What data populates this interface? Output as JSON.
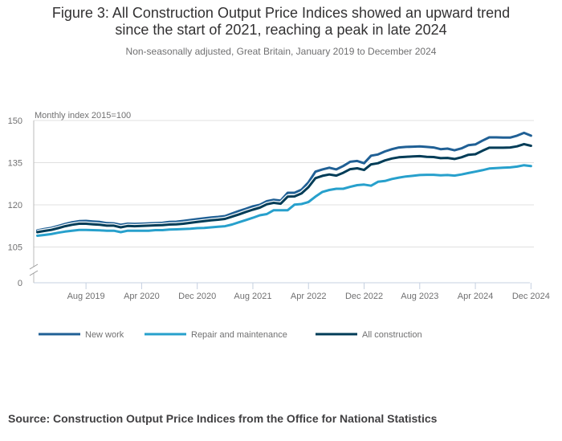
{
  "header": {
    "title_line1": "Figure 3: All Construction Output Price Indices showed an upward trend",
    "title_line2": "since the start of 2021, reaching a peak in late 2024",
    "subtitle": "Non-seasonally adjusted, Great Britain, January 2019 to December 2024"
  },
  "footer": {
    "source": "Source: Construction Output Price Indices from the Office for National Statistics"
  },
  "chart_data": {
    "type": "line",
    "title": "Figure 3: All Construction Output Price Indices showed an upward trend since the start of 2021, reaching a peak in late 2024",
    "subtitle": "Non-seasonally adjusted, Great Britain, January 2019 to December 2024",
    "ylabel": "Monthly index 2015=100",
    "xlabel": "",
    "y_ticks": [
      0,
      105,
      120,
      135,
      150
    ],
    "ylim_display": [
      100,
      150
    ],
    "axis_break": true,
    "grid": true,
    "legend_position": "bottom",
    "x_start": "Jan 2019",
    "x_end": "Dec 2024",
    "x_tick_labels": [
      "Aug 2019",
      "Apr 2020",
      "Dec 2020",
      "Aug 2021",
      "Apr 2022",
      "Dec 2022",
      "Aug 2023",
      "Apr 2024",
      "Dec 2024"
    ],
    "x_tick_month_index": [
      7,
      15,
      23,
      31,
      39,
      47,
      55,
      63,
      71
    ],
    "series": [
      {
        "name": "New work",
        "color": "#206095",
        "values": [
          110.9,
          111.4,
          111.8,
          112.5,
          113.2,
          113.8,
          114.2,
          114.3,
          114.1,
          113.9,
          113.5,
          113.4,
          112.9,
          113.3,
          113.2,
          113.3,
          113.4,
          113.5,
          113.6,
          113.9,
          114.0,
          114.3,
          114.6,
          114.9,
          115.2,
          115.5,
          115.7,
          116.0,
          116.9,
          117.8,
          118.6,
          119.5,
          120.0,
          121.3,
          121.8,
          121.5,
          124.3,
          124.3,
          125.4,
          128.0,
          131.8,
          132.6,
          133.2,
          132.6,
          133.8,
          135.3,
          135.6,
          134.8,
          137.5,
          137.9,
          139.0,
          139.8,
          140.4,
          140.6,
          140.7,
          140.8,
          140.6,
          140.4,
          139.8,
          140.0,
          139.4,
          140.1,
          141.2,
          141.5,
          142.8,
          144.0,
          144.0,
          143.9,
          143.9,
          144.6,
          145.6,
          144.6
        ]
      },
      {
        "name": "Repair and maintenance",
        "color": "#27a0cc",
        "values": [
          109.0,
          109.3,
          109.6,
          110.1,
          110.5,
          110.8,
          111.1,
          111.1,
          111.0,
          110.9,
          110.8,
          110.8,
          110.3,
          110.8,
          110.8,
          110.8,
          110.8,
          111.0,
          111.0,
          111.2,
          111.3,
          111.4,
          111.5,
          111.7,
          111.8,
          112.0,
          112.2,
          112.4,
          113.0,
          113.8,
          114.6,
          115.4,
          116.3,
          116.7,
          118.1,
          118.1,
          118.1,
          120.1,
          120.3,
          121.0,
          122.9,
          124.6,
          125.3,
          125.7,
          125.7,
          126.4,
          127.0,
          127.2,
          126.8,
          128.2,
          128.5,
          129.2,
          129.7,
          130.1,
          130.3,
          130.6,
          130.7,
          130.7,
          130.5,
          130.6,
          130.4,
          130.8,
          131.3,
          131.8,
          132.3,
          132.9,
          133.1,
          133.2,
          133.3,
          133.6,
          134.1,
          133.8
        ]
      },
      {
        "name": "All construction",
        "color": "#003c57",
        "values": [
          110.3,
          110.7,
          111.1,
          111.7,
          112.4,
          112.9,
          113.3,
          113.3,
          113.1,
          112.9,
          112.6,
          112.6,
          112.0,
          112.5,
          112.4,
          112.5,
          112.6,
          112.7,
          112.8,
          113.0,
          113.1,
          113.3,
          113.6,
          113.9,
          114.2,
          114.5,
          114.7,
          115.0,
          115.8,
          116.6,
          117.5,
          118.3,
          119.0,
          120.2,
          120.7,
          120.4,
          122.9,
          123.0,
          124.1,
          126.3,
          129.5,
          130.3,
          130.8,
          130.4,
          131.4,
          132.7,
          133.0,
          132.4,
          134.4,
          134.8,
          135.8,
          136.5,
          136.9,
          137.1,
          137.2,
          137.3,
          137.1,
          137.0,
          136.6,
          136.7,
          136.3,
          136.9,
          137.8,
          138.0,
          139.2,
          140.3,
          140.3,
          140.3,
          140.4,
          140.8,
          141.6,
          141.0
        ]
      }
    ]
  }
}
